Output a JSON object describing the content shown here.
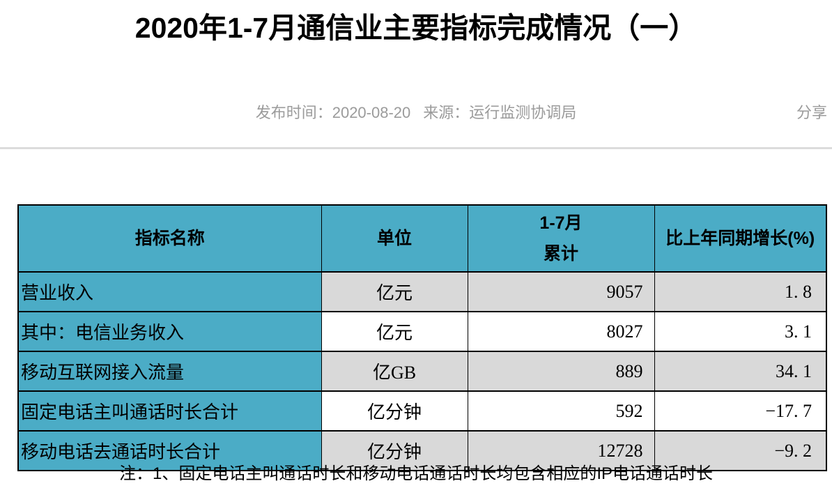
{
  "page": {
    "title": "2020年1-7月通信业主要指标完成情况（一）",
    "meta": {
      "publish": "发布时间：2020-08-20",
      "source": "来源：运行监测协调局",
      "share_label": "分享"
    },
    "note": "注：1、固定电话主叫通话时长和移动电话通话时长均包含相应的IP电话通话时长"
  },
  "colors": {
    "header_teal": "#4BACC6",
    "row_gray": "#D9D9D9",
    "meta_gray": "#9B9B9B",
    "border_black": "#000000",
    "divider_gray": "#DCDCDC"
  },
  "table": {
    "headers": {
      "indicator": "指标名称",
      "unit": "单位",
      "cumulative_line1": "1-7月",
      "cumulative_line2": "累计",
      "growth": "比上年同期增长(%)"
    },
    "rows": [
      {
        "indicator": "营业收入",
        "unit": "亿元",
        "cumulative": "9057",
        "growth": "1. 8"
      },
      {
        "indicator": "其中：电信业务收入",
        "unit": "亿元",
        "cumulative": "8027",
        "growth": "3. 1"
      },
      {
        "indicator": "移动互联网接入流量",
        "unit": "亿GB",
        "cumulative": "889",
        "growth": "34. 1"
      },
      {
        "indicator": "固定电话主叫通话时长合计",
        "unit": "亿分钟",
        "cumulative": "592",
        "growth": "−17. 7"
      },
      {
        "indicator": "移动电话去通话时长合计",
        "unit": "亿分钟",
        "cumulative": "12728",
        "growth": "−9. 2"
      }
    ]
  },
  "chart_data": {
    "type": "table",
    "title": "2020年1-7月通信业主要指标完成情况（一）",
    "columns": [
      "指标名称",
      "单位",
      "1-7月累计",
      "比上年同期增长(%)"
    ],
    "rows": [
      [
        "营业收入",
        "亿元",
        9057,
        1.8
      ],
      [
        "其中：电信业务收入",
        "亿元",
        8027,
        3.1
      ],
      [
        "移动互联网接入流量",
        "亿GB",
        889,
        34.1
      ],
      [
        "固定电话主叫通话时长合计",
        "亿分钟",
        592,
        -17.7
      ],
      [
        "移动电话去通话时长合计",
        "亿分钟",
        12728,
        -9.2
      ]
    ]
  }
}
